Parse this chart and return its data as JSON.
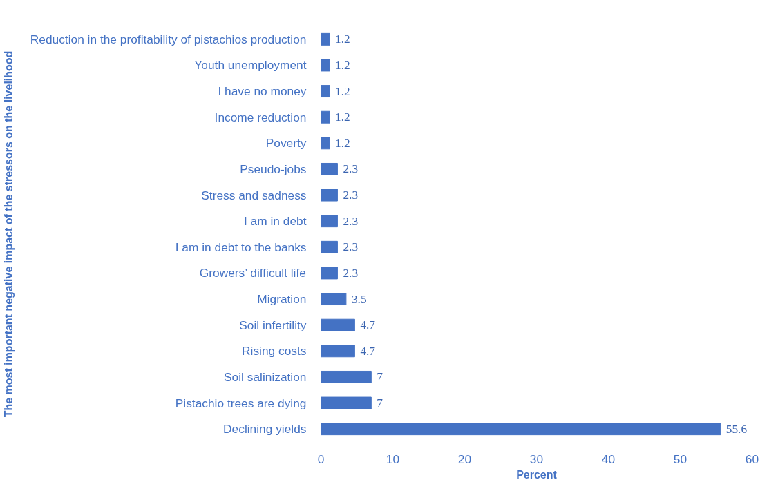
{
  "chart_data": {
    "type": "bar",
    "orientation": "horizontal",
    "xlabel": "Percent",
    "ylabel": "The most important negative impact of the stressors on the livelihood",
    "categories": [
      "Reduction in the profitability of pistachios production",
      "Youth unemployment",
      "I have no money",
      "Income reduction",
      "Poverty",
      "Pseudo-jobs",
      "Stress and sadness",
      "I am in debt",
      "I am in debt to the banks",
      "Growers’ difficult life",
      "Migration",
      "Soil infertility",
      "Rising costs",
      "Soil salinization",
      "Pistachio trees are dying",
      "Declining yields"
    ],
    "values": [
      1.2,
      1.2,
      1.2,
      1.2,
      1.2,
      2.3,
      2.3,
      2.3,
      2.3,
      2.3,
      3.5,
      4.7,
      4.7,
      7,
      7,
      55.6
    ],
    "color": "#4472c4",
    "xlim": [
      0,
      60
    ],
    "xticks": [
      0,
      10,
      20,
      30,
      40,
      50,
      60
    ],
    "data_labels": true,
    "grid": false
  }
}
